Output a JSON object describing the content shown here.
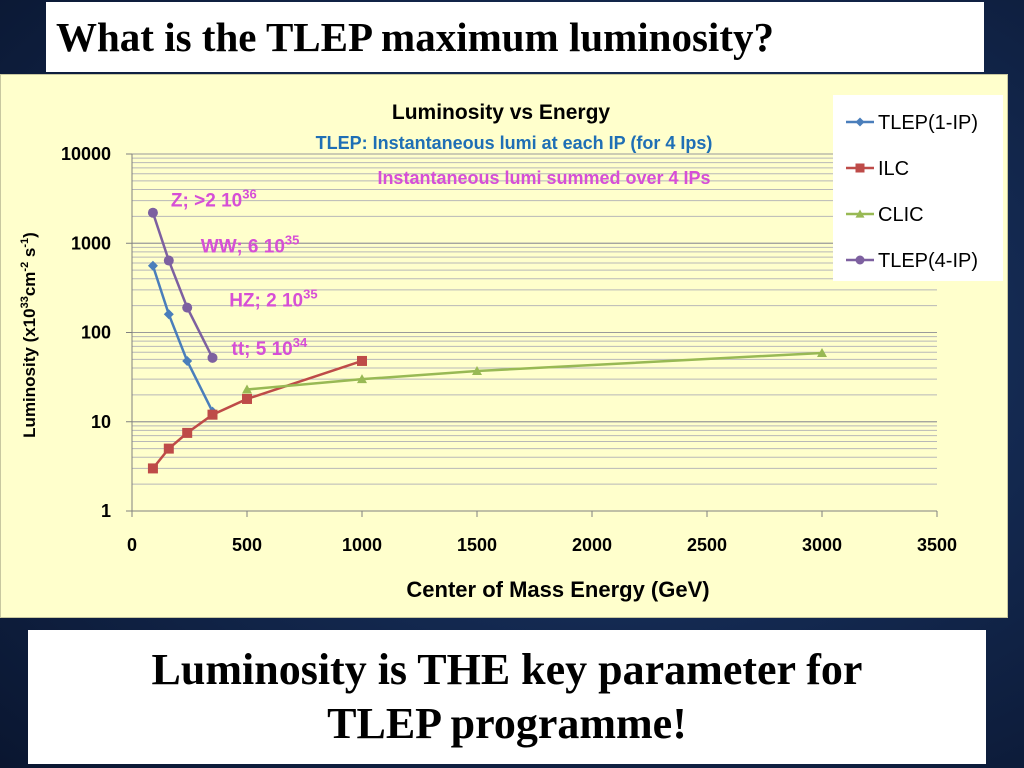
{
  "slide": {
    "title": "What is the TLEP maximum luminosity?",
    "conclusion_line1": "Luminosity is THE key parameter for",
    "conclusion_line2": "TLEP programme!"
  },
  "chart_data": {
    "type": "line",
    "title": "Luminosity vs Energy",
    "subtitle_1": "TLEP: Instantaneous lumi at each IP (for 4 Ips)",
    "subtitle_2": "Instantaneous lumi summed over 4 IPs",
    "xlabel": "Center of Mass Energy (GeV)",
    "ylabel": "Luminosity (x10",
    "ylabel_sup1": "33",
    "ylabel_mid": "cm",
    "ylabel_sup2": "-2",
    "ylabel_mid2": " s",
    "ylabel_sup3": "-1",
    "ylabel_end": ")",
    "xlim": [
      0,
      3500
    ],
    "ylim": [
      1,
      10000
    ],
    "y_scale": "log",
    "x_ticks": [
      "0",
      "500",
      "1000",
      "1500",
      "2000",
      "2500",
      "3000",
      "3500"
    ],
    "y_ticks": [
      "1",
      "10",
      "100",
      "1000",
      "10000"
    ],
    "grid": "horizontal minor log gridlines",
    "legend_position": "top-right",
    "series": [
      {
        "name": "TLEP(1-IP)",
        "color": "#4a7ebb",
        "marker": "diamond",
        "x": [
          91,
          160,
          240,
          350
        ],
        "y": [
          560,
          160,
          48,
          13
        ]
      },
      {
        "name": "ILC",
        "color": "#be4b48",
        "marker": "square",
        "x": [
          91,
          160,
          240,
          350,
          500,
          1000
        ],
        "y": [
          3,
          5,
          7.5,
          12,
          18,
          48
        ]
      },
      {
        "name": "CLIC",
        "color": "#98b954",
        "marker": "triangle",
        "x": [
          500,
          1000,
          1500,
          3000
        ],
        "y": [
          23,
          30,
          37,
          59
        ]
      },
      {
        "name": "TLEP(4-IP)",
        "color": "#7d60a0",
        "marker": "circle",
        "x": [
          91,
          160,
          240,
          350
        ],
        "y": [
          2200,
          640,
          190,
          52
        ]
      }
    ],
    "annotations": [
      {
        "label": "Z; >2 10",
        "sup": "36",
        "x": 91,
        "y": 2200
      },
      {
        "label": "WW; 6 10",
        "sup": "35",
        "x": 160,
        "y": 640
      },
      {
        "label": "HZ; 2 10",
        "sup": "35",
        "x": 240,
        "y": 190
      },
      {
        "label": "tt; 5 10",
        "sup": "34",
        "x": 350,
        "y": 52
      }
    ],
    "colors": {
      "subtitle_1": "#1f6fb5",
      "subtitle_2": "#d64fd6",
      "annotations": "#d64fd6"
    }
  }
}
